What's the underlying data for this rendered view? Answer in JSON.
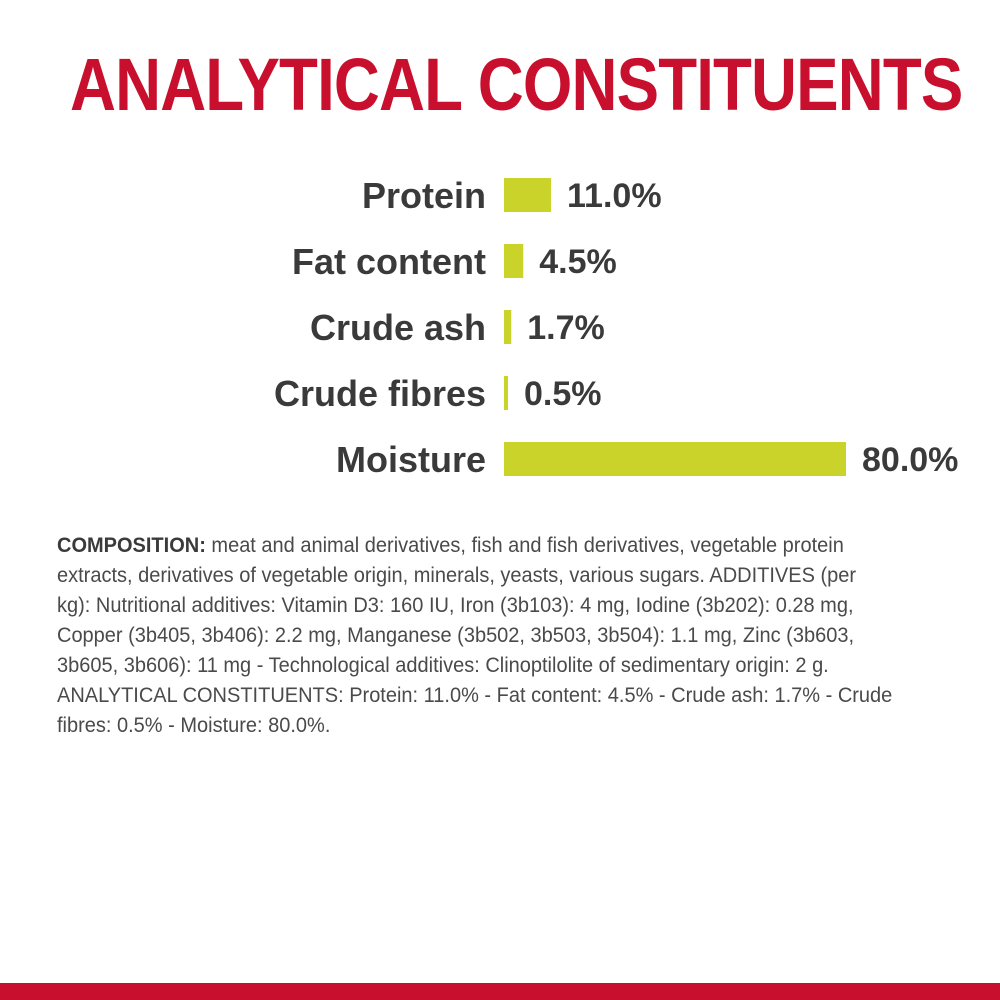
{
  "title": "ANALYTICAL CONSTITUENTS",
  "colors": {
    "title": "#c8102e",
    "bar": "#c9d32a",
    "label_text": "#3a3a3a",
    "body_text": "#4a4a4a",
    "bottom_band": "#c8102e"
  },
  "chart_data": {
    "type": "bar",
    "orientation": "horizontal",
    "categories": [
      "Protein",
      "Fat content",
      "Crude ash",
      "Crude fibres",
      "Moisture"
    ],
    "values": [
      11.0,
      4.5,
      1.7,
      0.5,
      80.0
    ],
    "value_labels": [
      "11.0%",
      "4.5%",
      "1.7%",
      "0.5%",
      "80.0%"
    ],
    "unit": "%",
    "xlim": [
      0,
      80
    ],
    "grid": false,
    "legend": "none"
  },
  "composition": {
    "lead": "COMPOSITION:",
    "text": " meat and animal derivatives, fish and fish derivatives, vegetable protein extracts, derivatives of vegetable origin, minerals, yeasts, various sugars. ADDITIVES (per kg): Nutritional additives: Vitamin D3: 160 IU, Iron (3b103): 4 mg, Iodine (3b202): 0.28 mg, Copper (3b405, 3b406): 2.2 mg, Manganese (3b502, 3b503, 3b504): 1.1 mg, Zinc (3b603, 3b605, 3b606): 11 mg - Technological additives: Clinoptilolite of sedimentary origin: 2 g. ANALYTICAL CONSTITUENTS: Protein: 11.0% - Fat content: 4.5% - Crude ash: 1.7% - Crude fibres: 0.5% - Moisture: 80.0%."
  }
}
